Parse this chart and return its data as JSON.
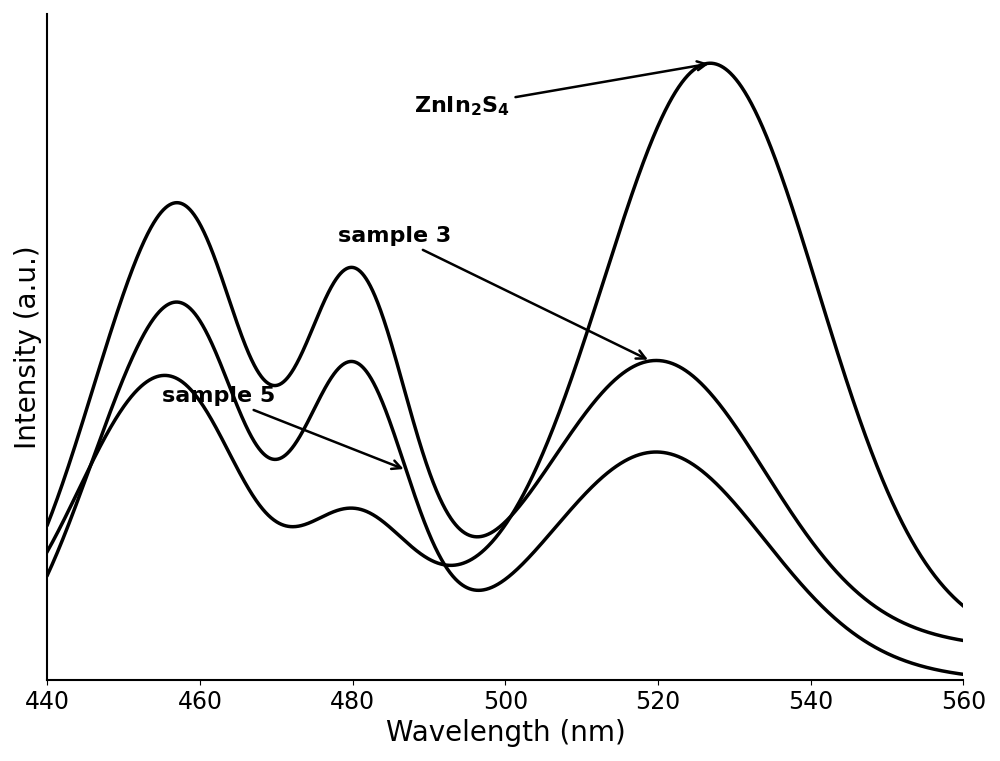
{
  "xlabel": "Wavelength (nm)",
  "ylabel": "Intensity (a.u.)",
  "xlim": [
    440,
    560
  ],
  "ylim": [
    0.0,
    1.08
  ],
  "xlabel_fontsize": 20,
  "ylabel_fontsize": 20,
  "tick_fontsize": 17,
  "line_color": "#000000",
  "line_width": 2.5,
  "background_color": "#ffffff",
  "xticks": [
    440,
    460,
    480,
    500,
    520,
    540,
    560
  ]
}
